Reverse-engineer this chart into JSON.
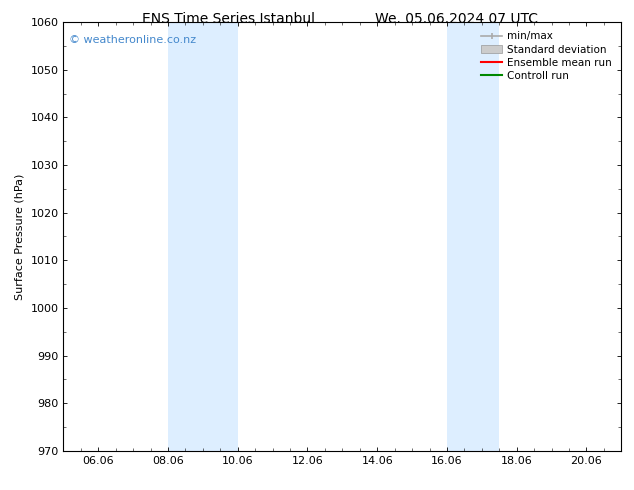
{
  "title_left": "ENS Time Series Istanbul",
  "title_right": "We. 05.06.2024 07 UTC",
  "ylabel": "Surface Pressure (hPa)",
  "ylim": [
    970,
    1060
  ],
  "yticks": [
    970,
    980,
    990,
    1000,
    1010,
    1020,
    1030,
    1040,
    1050,
    1060
  ],
  "xtick_labels": [
    "06.06",
    "08.06",
    "10.06",
    "12.06",
    "14.06",
    "16.06",
    "18.06",
    "20.06"
  ],
  "xtick_positions": [
    1,
    3,
    5,
    7,
    9,
    11,
    13,
    15
  ],
  "xlim": [
    0,
    16
  ],
  "shaded_regions": [
    {
      "xstart": 3.0,
      "xend": 5.0
    },
    {
      "xstart": 11.0,
      "xend": 12.5
    }
  ],
  "shaded_color": "#ddeeff",
  "background_color": "#ffffff",
  "watermark_text": "© weatheronline.co.nz",
  "watermark_color": "#4488cc",
  "legend_entries": [
    {
      "label": "min/max",
      "color": "#aaaaaa",
      "lw": 1.2,
      "style": "minmax"
    },
    {
      "label": "Standard deviation",
      "color": "#cccccc",
      "lw": 6,
      "style": "band"
    },
    {
      "label": "Ensemble mean run",
      "color": "#ff0000",
      "lw": 1.5,
      "style": "line"
    },
    {
      "label": "Controll run",
      "color": "#008800",
      "lw": 1.5,
      "style": "line"
    }
  ],
  "axes_color": "#000000",
  "font_size_title": 10,
  "font_size_axis": 8,
  "font_size_tick": 8,
  "font_size_legend": 7.5,
  "font_size_watermark": 8
}
